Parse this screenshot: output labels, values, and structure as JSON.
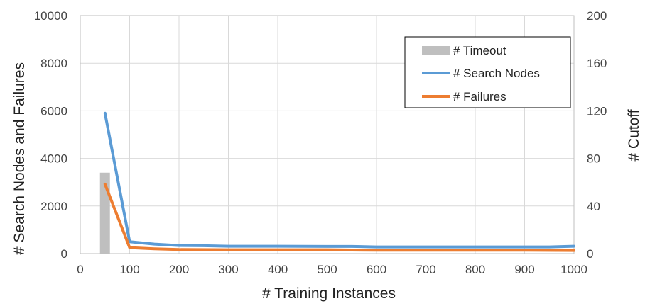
{
  "chart_data": {
    "type": "line",
    "xlabel": "# Training Instances",
    "ylabel_left": "# Search Nodes and Failures",
    "ylabel_right": "# Cutoff",
    "xlim": [
      0,
      1000
    ],
    "ylim_left": [
      0,
      10000
    ],
    "ylim_right": [
      0,
      200
    ],
    "x_ticks": [
      "0",
      "100",
      "200",
      "300",
      "400",
      "500",
      "600",
      "700",
      "800",
      "900",
      "1000"
    ],
    "y_ticks_left": [
      "0",
      "2000",
      "4000",
      "6000",
      "8000",
      "10000"
    ],
    "y_ticks_right": [
      "0",
      "40",
      "80",
      "120",
      "160",
      "200"
    ],
    "grid": true,
    "legend_position": "top-right",
    "series": [
      {
        "name": "# Timeout",
        "kind": "bar",
        "axis": "right",
        "color": "#bfbfbf",
        "points": [
          [
            50,
            68
          ]
        ]
      },
      {
        "name": "# Search Nodes",
        "kind": "line",
        "axis": "left",
        "color": "#5b9bd5",
        "points": [
          [
            50,
            5900
          ],
          [
            100,
            500
          ],
          [
            150,
            400
          ],
          [
            200,
            340
          ],
          [
            250,
            330
          ],
          [
            300,
            310
          ],
          [
            400,
            310
          ],
          [
            500,
            300
          ],
          [
            550,
            300
          ],
          [
            600,
            280
          ],
          [
            700,
            280
          ],
          [
            800,
            280
          ],
          [
            900,
            280
          ],
          [
            950,
            280
          ],
          [
            1000,
            310
          ]
        ]
      },
      {
        "name": "# Failures",
        "kind": "line",
        "axis": "left",
        "color": "#ed7d31",
        "points": [
          [
            50,
            2920
          ],
          [
            100,
            250
          ],
          [
            150,
            200
          ],
          [
            200,
            170
          ],
          [
            300,
            160
          ],
          [
            400,
            160
          ],
          [
            500,
            160
          ],
          [
            550,
            150
          ],
          [
            600,
            140
          ],
          [
            700,
            140
          ],
          [
            800,
            140
          ],
          [
            900,
            140
          ],
          [
            1000,
            130
          ]
        ]
      }
    ]
  }
}
